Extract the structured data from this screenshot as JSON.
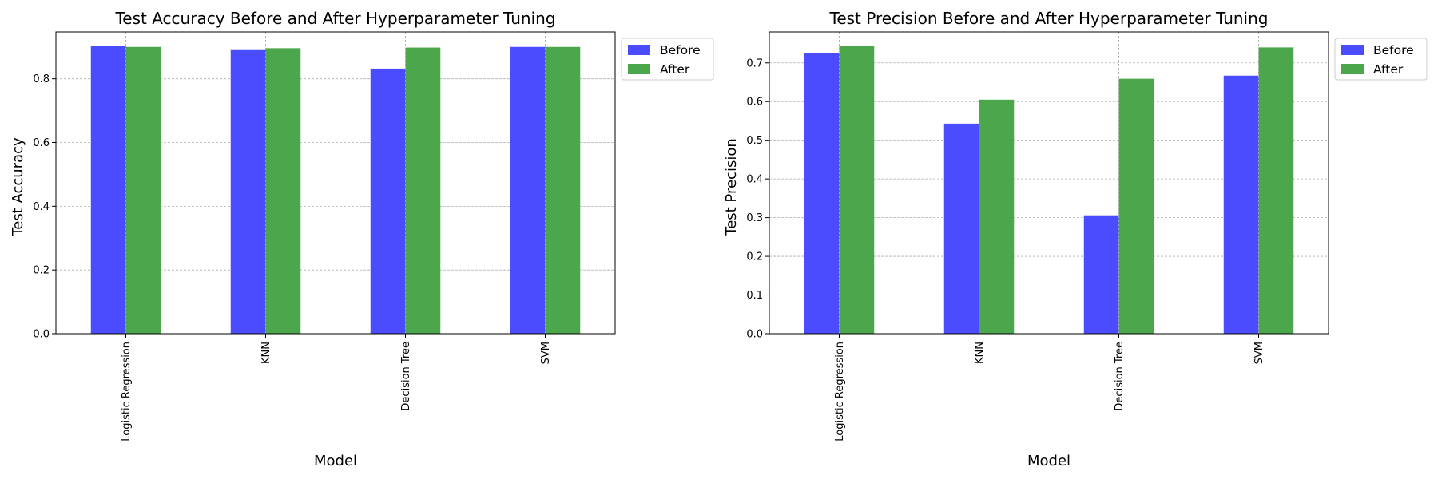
{
  "chart_data": [
    {
      "type": "bar",
      "title": "Test Accuracy Before and After Hyperparameter Tuning",
      "xlabel": "Model",
      "ylabel": "Test Accuracy",
      "categories": [
        "Logistic Regression",
        "KNN",
        "Decision Tree",
        "SVM"
      ],
      "series": [
        {
          "name": "Before",
          "color": "#4b4bff",
          "values": [
            0.904,
            0.89,
            0.832,
            0.9
          ]
        },
        {
          "name": "After",
          "color": "#4ca64c",
          "values": [
            0.9,
            0.896,
            0.898,
            0.9
          ]
        }
      ],
      "ylim": [
        0,
        0.947
      ],
      "yticks": [
        0.0,
        0.2,
        0.4,
        0.6,
        0.8
      ],
      "ytick_labels": [
        "0.0",
        "0.2",
        "0.4",
        "0.6",
        "0.8"
      ],
      "grid": true,
      "legend_position": "outside-top-right"
    },
    {
      "type": "bar",
      "title": "Test Precision Before and After Hyperparameter Tuning",
      "xlabel": "Model",
      "ylabel": "Test Precision",
      "categories": [
        "Logistic Regression",
        "KNN",
        "Decision Tree",
        "SVM"
      ],
      "series": [
        {
          "name": "Before",
          "color": "#4b4bff",
          "values": [
            0.725,
            0.543,
            0.306,
            0.667
          ]
        },
        {
          "name": "After",
          "color": "#4ca64c",
          "values": [
            0.743,
            0.605,
            0.659,
            0.74
          ]
        }
      ],
      "ylim": [
        0,
        0.78
      ],
      "yticks": [
        0.0,
        0.1,
        0.2,
        0.3,
        0.4,
        0.5,
        0.6,
        0.7
      ],
      "ytick_labels": [
        "0.0",
        "0.1",
        "0.2",
        "0.3",
        "0.4",
        "0.5",
        "0.6",
        "0.7"
      ],
      "grid": true,
      "legend_position": "outside-top-right"
    }
  ]
}
